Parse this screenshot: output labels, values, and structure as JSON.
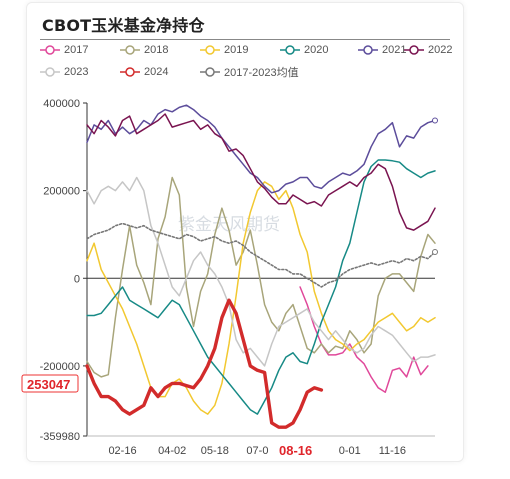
{
  "title": "CBOT玉米基金净持仓",
  "watermark": "紫金天风期货",
  "annotations": {
    "y_value": "253047",
    "x_date": "08-16"
  },
  "colors": {
    "2017": "#e0489a",
    "2018": "#a8a57a",
    "2019": "#f2c830",
    "2020": "#178a86",
    "2021": "#5c4d9b",
    "2022": "#7a1450",
    "2023": "#c6c6c6",
    "2024": "#d22b2b",
    "avg": "#777777",
    "annotation": "#e0252b"
  },
  "chart_data": {
    "type": "line",
    "title": "CBOT玉米基金净持仓",
    "ylim": [
      -359980,
      400000
    ],
    "y_ticks": [
      "400000",
      "200000",
      "0",
      "-200000",
      "-359980"
    ],
    "x_ticks": [
      "02-16",
      "04-02",
      "05-18",
      "07-0",
      "08-16",
      "0-01",
      "11-16"
    ],
    "grid": false,
    "legend_position": "top",
    "series": [
      {
        "name": "2017",
        "key": "2017",
        "start": 30,
        "values": [
          -20000,
          -60000,
          -110000,
          -150000,
          -175000,
          -175000,
          -170000,
          -150000,
          -180000,
          -195000,
          -225000,
          -250000,
          -260000,
          -210000,
          -205000,
          -225000,
          -180000,
          -220000,
          -200000
        ]
      },
      {
        "name": "2018",
        "key": "2018",
        "start": 0,
        "values": [
          -190000,
          -215000,
          -225000,
          -220000,
          -90000,
          20000,
          120000,
          30000,
          -10000,
          -60000,
          90000,
          140000,
          230000,
          190000,
          -20000,
          -110000,
          -30000,
          10000,
          100000,
          160000,
          110000,
          30000,
          60000,
          110000,
          30000,
          -60000,
          -100000,
          -120000,
          -80000,
          -60000,
          -110000,
          -160000,
          -170000,
          -150000,
          -170000,
          -155000,
          -160000,
          -120000,
          -140000,
          -170000,
          -150000,
          -40000,
          0,
          10000,
          10000,
          -10000,
          -30000,
          50000,
          100000,
          80000
        ]
      },
      {
        "name": "2019",
        "key": "2019",
        "start": 0,
        "values": [
          40000,
          80000,
          20000,
          -10000,
          -40000,
          -70000,
          -110000,
          -150000,
          -200000,
          -250000,
          -270000,
          -270000,
          -240000,
          -230000,
          -250000,
          -280000,
          -300000,
          -310000,
          -290000,
          -240000,
          -150000,
          -40000,
          80000,
          150000,
          200000,
          220000,
          210000,
          180000,
          200000,
          160000,
          100000,
          60000,
          -30000,
          -80000,
          -120000,
          -140000,
          -150000,
          -165000,
          -150000,
          -140000,
          -120000,
          -100000,
          -90000,
          -80000,
          -100000,
          -120000,
          -110000,
          -90000,
          -100000,
          -90000
        ]
      },
      {
        "name": "2020",
        "key": "2020",
        "start": 0,
        "values": [
          -85000,
          -85000,
          -80000,
          -60000,
          -40000,
          -20000,
          -50000,
          -60000,
          -70000,
          -80000,
          -90000,
          -70000,
          -50000,
          -60000,
          -90000,
          -120000,
          -150000,
          -180000,
          -200000,
          -220000,
          -240000,
          -260000,
          -280000,
          -300000,
          -310000,
          -280000,
          -250000,
          -210000,
          -180000,
          -170000,
          -190000,
          -195000,
          -150000,
          -100000,
          -60000,
          -20000,
          40000,
          80000,
          150000,
          220000,
          255000,
          270000,
          270000,
          268000,
          265000,
          250000,
          240000,
          230000,
          240000,
          245000
        ]
      },
      {
        "name": "2021",
        "key": "2021",
        "start": 0,
        "values": [
          310000,
          350000,
          340000,
          360000,
          330000,
          345000,
          330000,
          340000,
          360000,
          350000,
          375000,
          385000,
          380000,
          390000,
          395000,
          385000,
          370000,
          360000,
          345000,
          320000,
          300000,
          280000,
          260000,
          240000,
          230000,
          210000,
          195000,
          200000,
          215000,
          220000,
          230000,
          230000,
          210000,
          205000,
          220000,
          230000,
          240000,
          235000,
          245000,
          260000,
          300000,
          330000,
          340000,
          355000,
          300000,
          325000,
          320000,
          345000,
          355000,
          360000
        ]
      },
      {
        "name": "2022",
        "key": "2022",
        "start": 0,
        "values": [
          350000,
          330000,
          360000,
          345000,
          325000,
          360000,
          370000,
          330000,
          340000,
          350000,
          360000,
          375000,
          345000,
          350000,
          355000,
          360000,
          340000,
          350000,
          330000,
          320000,
          290000,
          295000,
          280000,
          250000,
          220000,
          205000,
          185000,
          170000,
          170000,
          190000,
          180000,
          170000,
          175000,
          165000,
          190000,
          200000,
          210000,
          220000,
          210000,
          230000,
          240000,
          260000,
          250000,
          210000,
          150000,
          115000,
          110000,
          120000,
          130000,
          160000
        ]
      },
      {
        "name": "2023",
        "key": "2023",
        "start": 0,
        "values": [
          200000,
          170000,
          200000,
          210000,
          200000,
          220000,
          200000,
          230000,
          200000,
          120000,
          80000,
          30000,
          -20000,
          -40000,
          0,
          40000,
          60000,
          30000,
          10000,
          -20000,
          -60000,
          -140000,
          -170000,
          -160000,
          -180000,
          -200000,
          -150000,
          -110000,
          -100000,
          -90000,
          -80000,
          -70000,
          -100000,
          -120000,
          -140000,
          -120000,
          -140000,
          -160000,
          -170000,
          -160000,
          -130000,
          -110000,
          -120000,
          -130000,
          -150000,
          -170000,
          -190000,
          -180000,
          -180000,
          -175000
        ]
      },
      {
        "name": "2024",
        "key": "2024",
        "start": 0,
        "values": [
          -200000,
          -240000,
          -270000,
          -270000,
          -280000,
          -300000,
          -310000,
          -300000,
          -290000,
          -250000,
          -270000,
          -250000,
          -240000,
          -240000,
          -245000,
          -250000,
          -230000,
          -200000,
          -160000,
          -90000,
          -50000,
          -80000,
          -140000,
          -200000,
          -210000,
          -215000,
          -330000,
          -340000,
          -340000,
          -330000,
          -300000,
          -260000,
          -250000,
          -255000
        ]
      },
      {
        "name": "2017-2023均值",
        "key": "avg",
        "dashed": true,
        "start": 0,
        "values": [
          90000,
          100000,
          105000,
          110000,
          120000,
          125000,
          120000,
          115000,
          120000,
          110000,
          105000,
          100000,
          95000,
          90000,
          100000,
          95000,
          85000,
          90000,
          95000,
          85000,
          80000,
          85000,
          75000,
          60000,
          50000,
          40000,
          30000,
          20000,
          20000,
          10000,
          10000,
          0,
          -10000,
          -20000,
          -10000,
          -5000,
          10000,
          20000,
          25000,
          30000,
          35000,
          30000,
          35000,
          40000,
          35000,
          45000,
          40000,
          50000,
          45000,
          60000
        ]
      }
    ]
  }
}
